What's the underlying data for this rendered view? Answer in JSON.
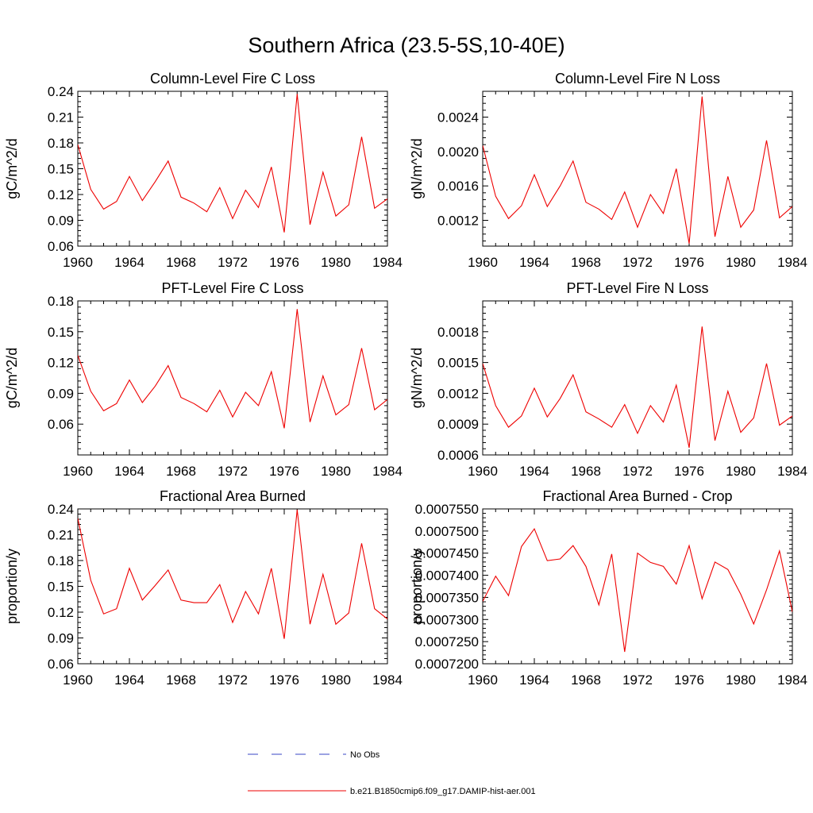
{
  "figure": {
    "title": "Southern Africa (23.5-5S,10-40E)"
  },
  "legend": [
    {
      "label": "No Obs",
      "color": "#3a44c4",
      "style": "dashed"
    },
    {
      "label": "b.e21.B1850cmip6.f09_g17.DAMIP-hist-aer.001",
      "color": "#ee0000",
      "style": "solid"
    }
  ],
  "chart_data": [
    {
      "type": "line",
      "title": "Column-Level Fire C Loss",
      "ylabel": "gC/m^2/d",
      "xlim": [
        1960,
        1984
      ],
      "ylim": [
        0.06,
        0.24
      ],
      "xticks": [
        "1960",
        "1964",
        "1968",
        "1972",
        "1976",
        "1980",
        "1984"
      ],
      "yticks": [
        "0.06",
        "0.09",
        "0.12",
        "0.15",
        "0.18",
        "0.21",
        "0.24"
      ],
      "x": [
        1960,
        1961,
        1962,
        1963,
        1964,
        1965,
        1966,
        1967,
        1968,
        1969,
        1970,
        1971,
        1972,
        1973,
        1974,
        1975,
        1976,
        1977,
        1978,
        1979,
        1980,
        1981,
        1982,
        1983,
        1984
      ],
      "series": [
        {
          "color": "#ee0000",
          "values": [
            0.178,
            0.126,
            0.103,
            0.112,
            0.141,
            0.113,
            0.135,
            0.159,
            0.117,
            0.11,
            0.1,
            0.128,
            0.092,
            0.125,
            0.105,
            0.152,
            0.076,
            0.237,
            0.085,
            0.146,
            0.095,
            0.108,
            0.187,
            0.104,
            0.115
          ]
        }
      ]
    },
    {
      "type": "line",
      "title": "Column-Level Fire N Loss",
      "ylabel": "gN/m^2/d",
      "xlim": [
        1960,
        1984
      ],
      "ylim": [
        0.0009,
        0.0027
      ],
      "xticks": [
        "1960",
        "1964",
        "1968",
        "1972",
        "1976",
        "1980",
        "1984"
      ],
      "yticks": [
        "0.0012",
        "0.0016",
        "0.0020",
        "0.0024"
      ],
      "x": [
        1960,
        1961,
        1962,
        1963,
        1964,
        1965,
        1966,
        1967,
        1968,
        1969,
        1970,
        1971,
        1972,
        1973,
        1974,
        1975,
        1976,
        1977,
        1978,
        1979,
        1980,
        1981,
        1982,
        1983,
        1984
      ],
      "series": [
        {
          "color": "#ee0000",
          "values": [
            0.00207,
            0.00148,
            0.00122,
            0.00137,
            0.00173,
            0.00136,
            0.0016,
            0.00189,
            0.00141,
            0.00133,
            0.00121,
            0.00153,
            0.00112,
            0.0015,
            0.00128,
            0.0018,
            0.00093,
            0.00264,
            0.00101,
            0.00171,
            0.00112,
            0.00132,
            0.00213,
            0.00123,
            0.00136
          ]
        }
      ]
    },
    {
      "type": "line",
      "title": "PFT-Level Fire C Loss",
      "ylabel": "gC/m^2/d",
      "xlim": [
        1960,
        1984
      ],
      "ylim": [
        0.03,
        0.18
      ],
      "xticks": [
        "1960",
        "1964",
        "1968",
        "1972",
        "1976",
        "1980",
        "1984"
      ],
      "yticks": [
        "0.06",
        "0.09",
        "0.12",
        "0.15",
        "0.18"
      ],
      "x": [
        1960,
        1961,
        1962,
        1963,
        1964,
        1965,
        1966,
        1967,
        1968,
        1969,
        1970,
        1971,
        1972,
        1973,
        1974,
        1975,
        1976,
        1977,
        1978,
        1979,
        1980,
        1981,
        1982,
        1983,
        1984
      ],
      "series": [
        {
          "color": "#ee0000",
          "values": [
            0.127,
            0.092,
            0.073,
            0.08,
            0.103,
            0.081,
            0.097,
            0.117,
            0.086,
            0.08,
            0.072,
            0.093,
            0.067,
            0.091,
            0.078,
            0.111,
            0.056,
            0.172,
            0.062,
            0.107,
            0.069,
            0.079,
            0.134,
            0.074,
            0.084
          ]
        }
      ]
    },
    {
      "type": "line",
      "title": "PFT-Level Fire N Loss",
      "ylabel": "gN/m^2/d",
      "xlim": [
        1960,
        1984
      ],
      "ylim": [
        0.0006,
        0.0021
      ],
      "xticks": [
        "1960",
        "1964",
        "1968",
        "1972",
        "1976",
        "1980",
        "1984"
      ],
      "yticks": [
        "0.0006",
        "0.0009",
        "0.0012",
        "0.0015",
        "0.0018"
      ],
      "x": [
        1960,
        1961,
        1962,
        1963,
        1964,
        1965,
        1966,
        1967,
        1968,
        1969,
        1970,
        1971,
        1972,
        1973,
        1974,
        1975,
        1976,
        1977,
        1978,
        1979,
        1980,
        1981,
        1982,
        1983,
        1984
      ],
      "series": [
        {
          "color": "#ee0000",
          "values": [
            0.00149,
            0.00108,
            0.00087,
            0.00098,
            0.00125,
            0.00097,
            0.00115,
            0.00138,
            0.00102,
            0.00095,
            0.00087,
            0.00109,
            0.00081,
            0.00108,
            0.00092,
            0.00128,
            0.00067,
            0.00185,
            0.00074,
            0.00122,
            0.00082,
            0.00096,
            0.00149,
            0.00089,
            0.00098
          ]
        }
      ]
    },
    {
      "type": "line",
      "title": "Fractional Area Burned",
      "ylabel": "proportion/y",
      "xlim": [
        1960,
        1984
      ],
      "ylim": [
        0.06,
        0.24
      ],
      "xticks": [
        "1960",
        "1964",
        "1968",
        "1972",
        "1976",
        "1980",
        "1984"
      ],
      "yticks": [
        "0.06",
        "0.09",
        "0.12",
        "0.15",
        "0.18",
        "0.21",
        "0.24"
      ],
      "x": [
        1960,
        1961,
        1962,
        1963,
        1964,
        1965,
        1966,
        1967,
        1968,
        1969,
        1970,
        1971,
        1972,
        1973,
        1974,
        1975,
        1976,
        1977,
        1978,
        1979,
        1980,
        1981,
        1982,
        1983,
        1984
      ],
      "series": [
        {
          "color": "#ee0000",
          "values": [
            0.229,
            0.157,
            0.118,
            0.124,
            0.171,
            0.134,
            0.151,
            0.169,
            0.134,
            0.131,
            0.131,
            0.152,
            0.108,
            0.144,
            0.118,
            0.171,
            0.089,
            0.239,
            0.106,
            0.164,
            0.106,
            0.119,
            0.2,
            0.124,
            0.112
          ]
        }
      ]
    },
    {
      "type": "line",
      "title": "Fractional Area Burned - Crop",
      "ylabel": "proportion/y",
      "xlim": [
        1960,
        1984
      ],
      "ylim": [
        0.00072,
        0.000755
      ],
      "xticks": [
        "1960",
        "1964",
        "1968",
        "1972",
        "1976",
        "1980",
        "1984"
      ],
      "yticks": [
        "0.0007200",
        "0.0007250",
        "0.0007300",
        "0.0007350",
        "0.0007400",
        "0.0007450",
        "0.0007500",
        "0.0007550"
      ],
      "x": [
        1960,
        1961,
        1962,
        1963,
        1964,
        1965,
        1966,
        1967,
        1968,
        1969,
        1970,
        1971,
        1972,
        1973,
        1974,
        1975,
        1976,
        1977,
        1978,
        1979,
        1980,
        1981,
        1982,
        1983,
        1984
      ],
      "series": [
        {
          "color": "#ee0000",
          "values": [
            0.0007341,
            0.0007398,
            0.0007354,
            0.0007465,
            0.0007505,
            0.0007433,
            0.0007437,
            0.0007467,
            0.000742,
            0.0007333,
            0.0007448,
            0.0007227,
            0.000745,
            0.0007429,
            0.000742,
            0.000738,
            0.0007467,
            0.0007347,
            0.000743,
            0.0007413,
            0.0007357,
            0.000729,
            0.0007367,
            0.0007455,
            0.0007317
          ]
        }
      ]
    }
  ]
}
